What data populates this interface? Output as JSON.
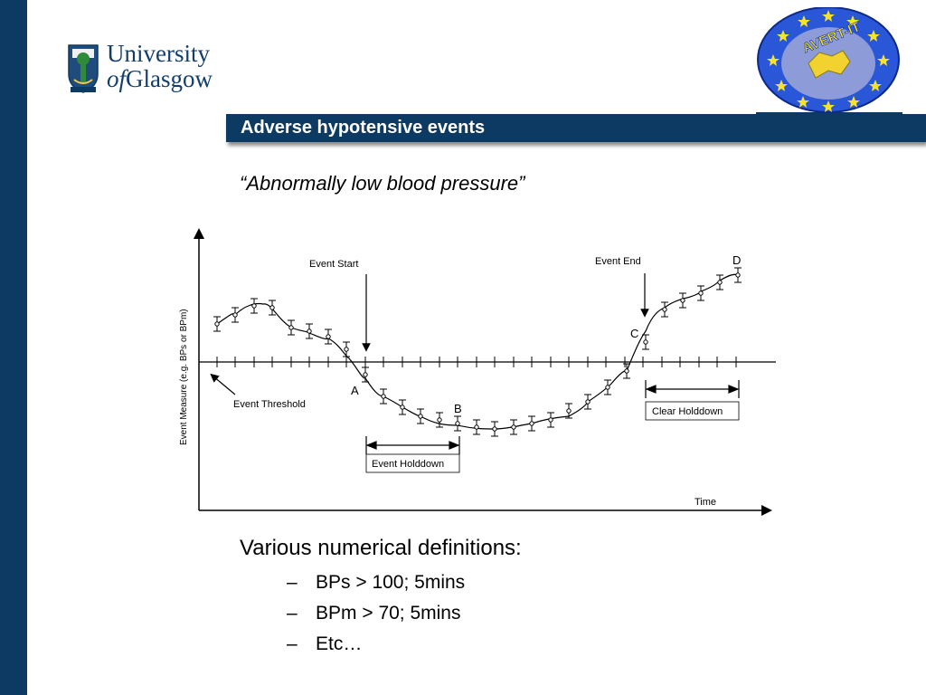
{
  "logos": {
    "university_line1": "University",
    "university_of": "of",
    "university_line2": "Glasgow",
    "avert_text": "AVERT-IT"
  },
  "slide": {
    "title": "Adverse hypotensive events",
    "subtitle": "“Abnormally low blood pressure”"
  },
  "diagram": {
    "y_axis_label": "Event Measure (e.g. BPs or BPm)",
    "x_axis_label": "Time",
    "event_start_label": "Event Start",
    "event_end_label": "Event End",
    "event_threshold_label": "Event Threshold",
    "event_holddown_label": "Event Holddown",
    "clear_holddown_label": "Clear Holddown",
    "point_a": "A",
    "point_b": "B",
    "point_c": "C",
    "point_d": "D"
  },
  "definitions": {
    "heading": "Various numerical definitions:",
    "items": [
      "BPs > 100; 5mins",
      "BPm > 70; 5mins",
      "Etc…"
    ]
  },
  "colors": {
    "brand_navy": "#0d3a63",
    "avert_blue": "#1f3fbf",
    "avert_star": "#f6e32a"
  }
}
